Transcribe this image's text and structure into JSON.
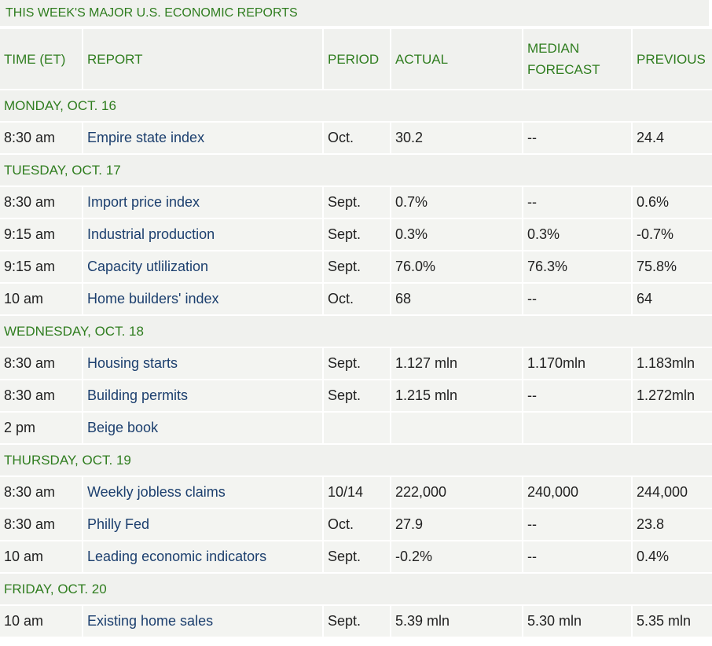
{
  "title": "THIS WEEK'S MAJOR U.S. ECONOMIC REPORTS",
  "headers": {
    "time": "TIME (ET)",
    "report": "REPORT",
    "period": "PERIOD",
    "actual": "ACTUAL",
    "median_line1": "MEDIAN",
    "median_line2": "FORECAST",
    "previous": "PREVIOUS"
  },
  "sections": [
    {
      "day": "MONDAY, OCT. 16",
      "rows": [
        {
          "time": "8:30 am",
          "report": "Empire state index",
          "period": "Oct.",
          "actual": "30.2",
          "forecast": "--",
          "previous": "24.4"
        }
      ]
    },
    {
      "day": "TUESDAY, OCT. 17",
      "rows": [
        {
          "time": "8:30 am",
          "report": "Import price index",
          "period": "Sept.",
          "actual": "0.7%",
          "forecast": "--",
          "previous": "0.6%"
        },
        {
          "time": "9:15 am",
          "report": "Industrial production",
          "period": "Sept.",
          "actual": "0.3%",
          "forecast": "0.3%",
          "previous": "-0.7%"
        },
        {
          "time": "9:15 am",
          "report": "Capacity utlilization",
          "period": "Sept.",
          "actual": "76.0%",
          "forecast": "76.3%",
          "previous": "75.8%"
        },
        {
          "time": "10 am",
          "report": "Home builders' index",
          "period": "Oct.",
          "actual": "68",
          "forecast": "--",
          "previous": "64"
        }
      ]
    },
    {
      "day": "WEDNESDAY, OCT. 18",
      "rows": [
        {
          "time": "8:30 am",
          "report": "Housing starts",
          "period": "Sept.",
          "actual": "1.127 mln",
          "forecast": "1.170mln",
          "previous": "1.183mln"
        },
        {
          "time": "8:30 am",
          "report": "Building permits",
          "period": "Sept.",
          "actual": "1.215 mln",
          "forecast": "--",
          "previous": "1.272mln"
        },
        {
          "time": "2 pm",
          "report": "Beige book",
          "period": "",
          "actual": "",
          "forecast": "",
          "previous": ""
        }
      ]
    },
    {
      "day": "THURSDAY, OCT. 19",
      "rows": [
        {
          "time": "8:30 am",
          "report": "Weekly jobless claims",
          "period": "10/14",
          "actual": "222,000",
          "forecast": "240,000",
          "previous": "244,000"
        },
        {
          "time": "8:30 am",
          "report": "Philly Fed",
          "period": "Oct.",
          "actual": "27.9",
          "forecast": "--",
          "previous": "23.8"
        },
        {
          "time": "10 am",
          "report": "Leading economic indicators",
          "period": "Sept.",
          "actual": "-0.2%",
          "forecast": "--",
          "previous": "0.4%"
        }
      ]
    },
    {
      "day": "FRIDAY, OCT. 20",
      "rows": [
        {
          "time": "10 am",
          "report": "Existing home sales",
          "period": "Sept.",
          "actual": "5.39 mln",
          "forecast": "5.30 mln",
          "previous": "5.35 mln"
        }
      ]
    }
  ]
}
